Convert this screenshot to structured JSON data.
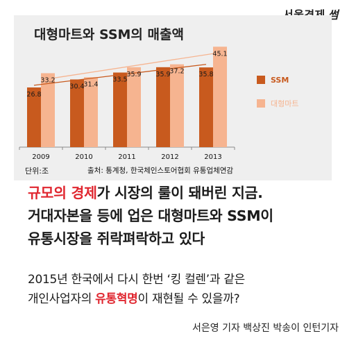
{
  "brand": {
    "name": "서울경제",
    "mark": "썸"
  },
  "chart_data": {
    "type": "bar",
    "title": "대형마트와 SSM의 매출액",
    "categories": [
      "2009",
      "2010",
      "2011",
      "2012",
      "2013"
    ],
    "series": [
      {
        "name": "SSM",
        "color": "#c85a1e",
        "values": [
          26.8,
          30.4,
          33.5,
          35.9,
          35.8
        ]
      },
      {
        "name": "대형마트",
        "color": "#f6b490",
        "values": [
          33.2,
          31.4,
          35.9,
          37.2,
          45.1
        ]
      }
    ],
    "trendlines": true,
    "unit_label": "단위:조",
    "source": "출처: 통계청, 한국체인스토어협회 유통업체연감",
    "legend_position": "right"
  },
  "headline": {
    "line1_red": "규모의 경제",
    "line1_rest": "가 시장의 룰이 돼버린 지금.",
    "line2": "거대자본을 등에 업은 대형마트와 SSM이",
    "line3": "유통시장을 쥐락펴락하고 있다"
  },
  "sub": {
    "line1": "2015년 한국에서 다시 한번 ‘킹 컬렌’과 같은",
    "line2_pre": "개인사업자의 ",
    "line2_red": "유통혁명",
    "line2_post": "이 재현될 수 있을까?"
  },
  "byline": "서은영 기자 백상진 박송이 인턴기자"
}
